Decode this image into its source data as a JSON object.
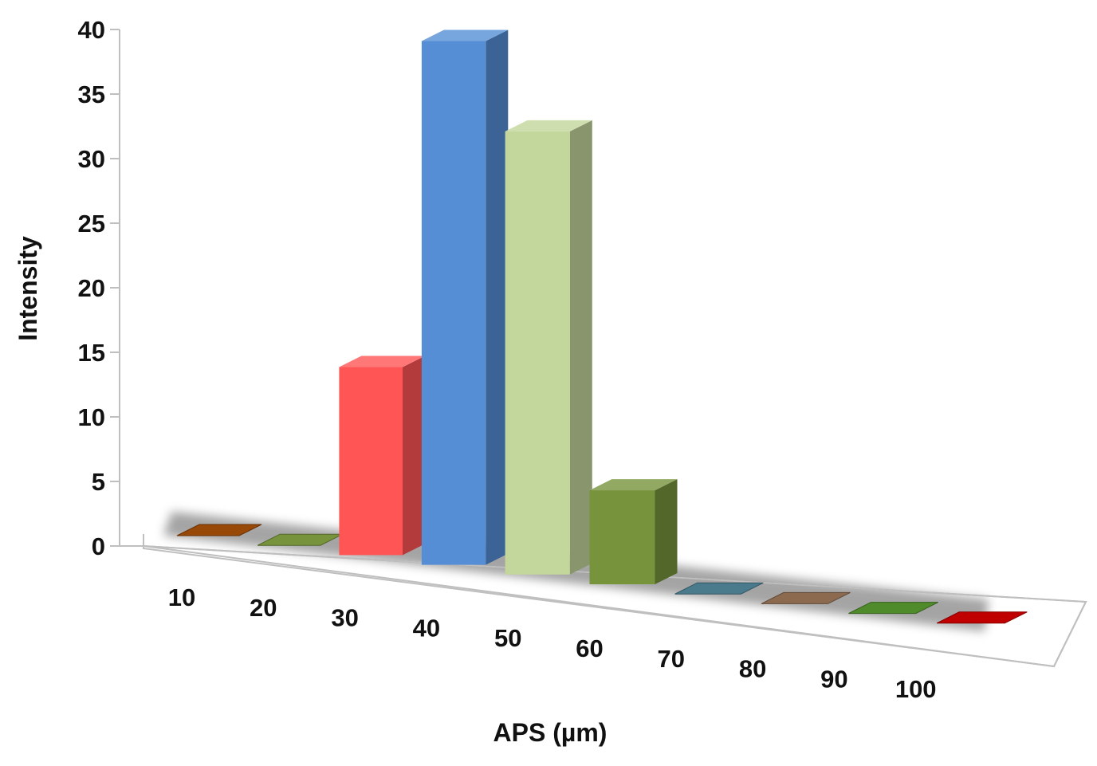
{
  "chart_data": {
    "type": "bar",
    "style": "3d-column",
    "title": "",
    "xlabel": "APS (µm)",
    "ylabel": "Intensity",
    "categories": [
      "10",
      "20",
      "30",
      "40",
      "50",
      "60",
      "70",
      "80",
      "90",
      "100"
    ],
    "values": [
      0,
      0,
      14,
      39,
      33,
      7,
      0,
      0,
      0,
      0
    ],
    "colors": [
      "#984807",
      "#77933c",
      "#ff5555",
      "#558ed5",
      "#c3d69b",
      "#77933c",
      "#4a7b8c",
      "#8b6a4f",
      "#4f8a2b",
      "#c00000"
    ],
    "ylim": [
      0,
      40
    ],
    "yticks": [
      "0",
      "5",
      "10",
      "15",
      "20",
      "25",
      "30",
      "35",
      "40"
    ],
    "grid": false,
    "legend": "none"
  }
}
